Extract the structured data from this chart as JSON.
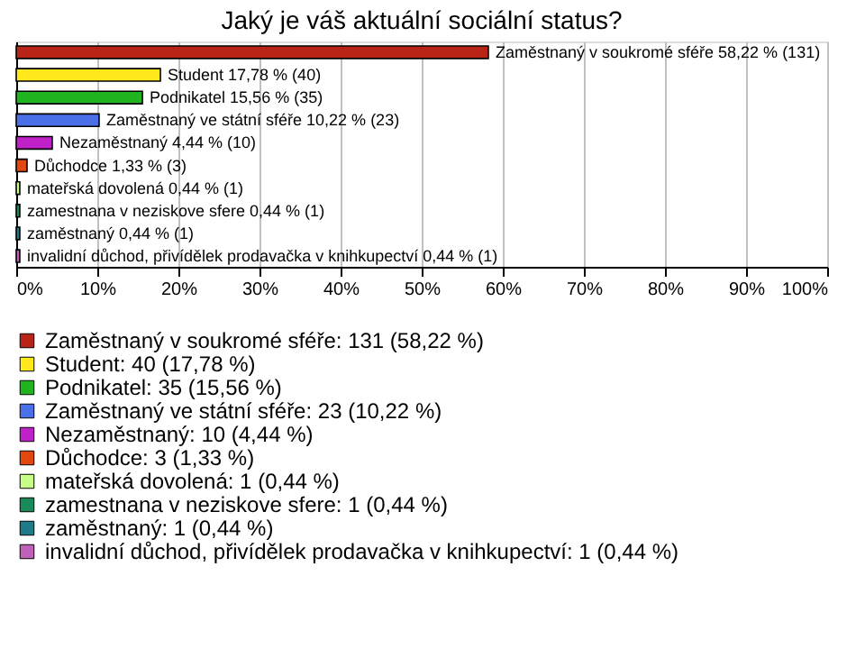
{
  "chart_data": {
    "type": "bar",
    "orientation": "horizontal",
    "title": "Jaký je váš aktuální sociální status?",
    "categories": [
      null,
      null,
      null,
      null,
      null,
      null,
      null,
      null,
      null,
      null
    ],
    "series": [
      {
        "name": "Zaměstnaný v soukromé sféře: 131 (58,22 %)",
        "color": "#b82418",
        "values": [
          58.22,
          null,
          null,
          null,
          null,
          null,
          null,
          null,
          null,
          null
        ],
        "value_labels": [
          "Zaměstnaný v soukromé sféře 58,22 % (131)",
          null,
          null,
          null,
          null,
          null,
          null,
          null,
          null,
          null
        ]
      },
      {
        "name": "Student: 40 (17,78 %)",
        "color": "#ffe81c",
        "values": [
          null,
          17.78,
          null,
          null,
          null,
          null,
          null,
          null,
          null,
          null
        ],
        "value_labels": [
          null,
          "Student 17,78 % (40)",
          null,
          null,
          null,
          null,
          null,
          null,
          null,
          null
        ]
      },
      {
        "name": "Podnikatel: 35 (15,56 %)",
        "color": "#20b420",
        "values": [
          null,
          null,
          15.56,
          null,
          null,
          null,
          null,
          null,
          null,
          null
        ],
        "value_labels": [
          null,
          null,
          "Podnikatel 15,56 % (35)",
          null,
          null,
          null,
          null,
          null,
          null,
          null
        ]
      },
      {
        "name": "Zaměstnaný ve státní sféře: 23 (10,22 %)",
        "color": "#4a70e8",
        "values": [
          null,
          null,
          null,
          10.22,
          null,
          null,
          null,
          null,
          null,
          null
        ],
        "value_labels": [
          null,
          null,
          null,
          "Zaměstnaný ve státní sféře 10,22 % (23)",
          null,
          null,
          null,
          null,
          null,
          null
        ]
      },
      {
        "name": "Nezaměstnaný: 10 (4,44 %)",
        "color": "#c020c8",
        "values": [
          null,
          null,
          null,
          null,
          4.44,
          null,
          null,
          null,
          null,
          null
        ],
        "value_labels": [
          null,
          null,
          null,
          null,
          "Nezaměstnaný 4,44 % (10)",
          null,
          null,
          null,
          null,
          null
        ]
      },
      {
        "name": "Důchodce: 3 (1,33 %)",
        "color": "#e04810",
        "values": [
          null,
          null,
          null,
          null,
          null,
          1.33,
          null,
          null,
          null,
          null
        ],
        "value_labels": [
          null,
          null,
          null,
          null,
          null,
          "Důchodce 1,33 % (3)",
          null,
          null,
          null,
          null
        ]
      },
      {
        "name": "mateřská dovolená: 1 (0,44 %)",
        "color": "#c8ff88",
        "values": [
          null,
          null,
          null,
          null,
          null,
          null,
          0.44,
          null,
          null,
          null
        ],
        "value_labels": [
          null,
          null,
          null,
          null,
          null,
          null,
          "mateřská dovolená 0,44 % (1)",
          null,
          null,
          null
        ]
      },
      {
        "name": "zamestnana v neziskove sfere: 1 (0,44 %)",
        "color": "#1a8a58",
        "values": [
          null,
          null,
          null,
          null,
          null,
          null,
          null,
          0.44,
          null,
          null
        ],
        "value_labels": [
          null,
          null,
          null,
          null,
          null,
          null,
          null,
          "zamestnana v neziskove sfere 0,44 % (1)",
          null,
          null
        ]
      },
      {
        "name": "zaměstnaný: 1 (0,44 %)",
        "color": "#1f7a8a",
        "values": [
          null,
          null,
          null,
          null,
          null,
          null,
          null,
          null,
          0.44,
          null
        ],
        "value_labels": [
          null,
          null,
          null,
          null,
          null,
          null,
          null,
          null,
          "zaměstnaný 0,44 % (1)",
          null
        ]
      },
      {
        "name": "invalidní důchod, přivídělek prodavačka v knihkupectví: 1 (0,44 %)",
        "color": "#c060b8",
        "values": [
          null,
          null,
          null,
          null,
          null,
          null,
          null,
          null,
          null,
          0.44
        ],
        "value_labels": [
          null,
          null,
          null,
          null,
          null,
          null,
          null,
          null,
          null,
          "invalidní důchod, přivídělek prodavačka v knihkupectví 0,44 % (1)"
        ]
      }
    ],
    "xlim": [
      0,
      100
    ],
    "xticks": [
      {
        "value": 0,
        "label": "0%"
      },
      {
        "value": 10,
        "label": "10%"
      },
      {
        "value": 20,
        "label": "20%"
      },
      {
        "value": 30,
        "label": "30%"
      },
      {
        "value": 40,
        "label": "40%"
      },
      {
        "value": 50,
        "label": "50%"
      },
      {
        "value": 60,
        "label": "60%"
      },
      {
        "value": 70,
        "label": "70%"
      },
      {
        "value": 80,
        "label": "80%"
      },
      {
        "value": 90,
        "label": "90%"
      },
      {
        "value": 100,
        "label": "100%"
      }
    ],
    "grid": "x",
    "tick_labels": "x",
    "legend": "bottom"
  }
}
